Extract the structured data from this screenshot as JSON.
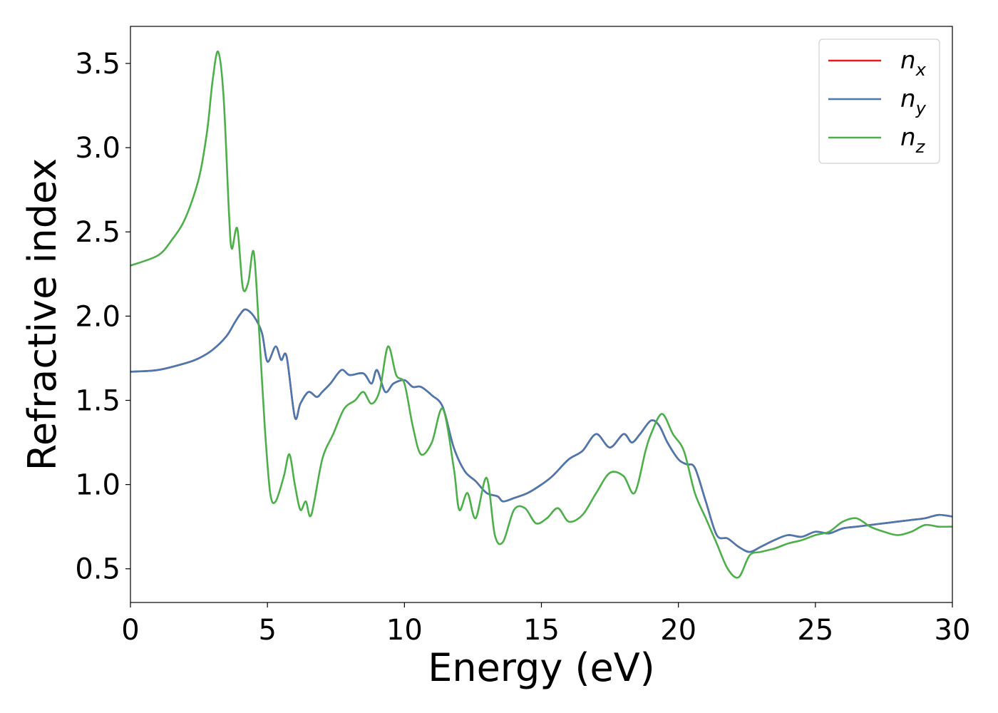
{
  "chart_data": {
    "type": "line",
    "xlabel": "Energy (eV)",
    "ylabel": "Refractive index",
    "xlim": [
      0,
      30
    ],
    "ylim": [
      0.3,
      3.72
    ],
    "xticks": [
      0,
      5,
      10,
      15,
      20,
      25,
      30
    ],
    "xtick_labels": [
      "0",
      "5",
      "10",
      "15",
      "20",
      "25",
      "30"
    ],
    "yticks": [
      0.5,
      1.0,
      1.5,
      2.0,
      2.5,
      3.0,
      3.5
    ],
    "ytick_labels": [
      "0.5",
      "1.0",
      "1.5",
      "2.0",
      "2.5",
      "3.0",
      "3.5"
    ],
    "grid": false,
    "legend_position": "top-right",
    "series": [
      {
        "name": "n_x",
        "label_base": "n",
        "label_sub": "x",
        "color": "#e41a1c",
        "x": [
          0,
          1,
          2,
          2.5,
          3,
          3.5,
          3.8,
          4.0,
          4.2,
          4.5,
          4.8,
          5.0,
          5.3,
          5.5,
          5.7,
          6.0,
          6.2,
          6.5,
          6.8,
          7.0,
          7.3,
          7.7,
          8.0,
          8.5,
          8.8,
          9.0,
          9.3,
          9.6,
          10.0,
          10.3,
          10.6,
          11.0,
          11.4,
          11.8,
          12.2,
          12.6,
          13.0,
          13.4,
          13.6,
          14.0,
          14.5,
          15.0,
          15.4,
          16.0,
          16.5,
          17.0,
          17.5,
          18.0,
          18.3,
          18.6,
          19.0,
          19.3,
          19.6,
          20.0,
          20.3,
          20.6,
          21.0,
          21.4,
          21.8,
          22.2,
          22.6,
          23.0,
          23.5,
          24.0,
          24.5,
          25.0,
          25.5,
          26.0,
          26.5,
          27.0,
          27.5,
          28.0,
          28.5,
          29.0,
          29.5,
          30.0
        ],
        "y": [
          1.67,
          1.68,
          1.72,
          1.75,
          1.8,
          1.88,
          1.96,
          2.01,
          2.04,
          2.0,
          1.9,
          1.73,
          1.82,
          1.74,
          1.76,
          1.4,
          1.48,
          1.55,
          1.52,
          1.55,
          1.6,
          1.68,
          1.65,
          1.66,
          1.6,
          1.68,
          1.55,
          1.6,
          1.62,
          1.58,
          1.58,
          1.53,
          1.46,
          1.22,
          1.08,
          1.02,
          0.95,
          0.93,
          0.9,
          0.92,
          0.95,
          1.0,
          1.05,
          1.15,
          1.2,
          1.3,
          1.22,
          1.3,
          1.25,
          1.3,
          1.38,
          1.35,
          1.25,
          1.15,
          1.12,
          1.1,
          0.9,
          0.7,
          0.68,
          0.63,
          0.6,
          0.63,
          0.67,
          0.7,
          0.69,
          0.72,
          0.71,
          0.74,
          0.75,
          0.76,
          0.77,
          0.78,
          0.79,
          0.8,
          0.82,
          0.81
        ]
      },
      {
        "name": "n_y",
        "label_base": "n",
        "label_sub": "y",
        "color": "#4a78b0",
        "x": [
          0,
          1,
          2,
          2.5,
          3,
          3.5,
          3.8,
          4.0,
          4.2,
          4.5,
          4.8,
          5.0,
          5.3,
          5.5,
          5.7,
          6.0,
          6.2,
          6.5,
          6.8,
          7.0,
          7.3,
          7.7,
          8.0,
          8.5,
          8.8,
          9.0,
          9.3,
          9.6,
          10.0,
          10.3,
          10.6,
          11.0,
          11.4,
          11.8,
          12.2,
          12.6,
          13.0,
          13.4,
          13.6,
          14.0,
          14.5,
          15.0,
          15.4,
          16.0,
          16.5,
          17.0,
          17.5,
          18.0,
          18.3,
          18.6,
          19.0,
          19.3,
          19.6,
          20.0,
          20.3,
          20.6,
          21.0,
          21.4,
          21.8,
          22.2,
          22.6,
          23.0,
          23.5,
          24.0,
          24.5,
          25.0,
          25.5,
          26.0,
          26.5,
          27.0,
          27.5,
          28.0,
          28.5,
          29.0,
          29.5,
          30.0
        ],
        "y": [
          1.67,
          1.68,
          1.72,
          1.75,
          1.8,
          1.88,
          1.96,
          2.01,
          2.04,
          2.0,
          1.9,
          1.73,
          1.82,
          1.74,
          1.76,
          1.4,
          1.48,
          1.55,
          1.52,
          1.55,
          1.6,
          1.68,
          1.65,
          1.66,
          1.6,
          1.68,
          1.55,
          1.6,
          1.62,
          1.58,
          1.58,
          1.53,
          1.46,
          1.22,
          1.08,
          1.02,
          0.95,
          0.93,
          0.9,
          0.92,
          0.95,
          1.0,
          1.05,
          1.15,
          1.2,
          1.3,
          1.22,
          1.3,
          1.25,
          1.3,
          1.38,
          1.35,
          1.25,
          1.15,
          1.12,
          1.1,
          0.9,
          0.7,
          0.68,
          0.63,
          0.6,
          0.63,
          0.67,
          0.7,
          0.69,
          0.72,
          0.71,
          0.74,
          0.75,
          0.76,
          0.77,
          0.78,
          0.79,
          0.8,
          0.82,
          0.81
        ]
      },
      {
        "name": "n_z",
        "label_base": "n",
        "label_sub": "z",
        "color": "#4daf4a",
        "x": [
          0,
          1,
          1.5,
          2.0,
          2.5,
          2.8,
          3.0,
          3.2,
          3.4,
          3.6,
          3.7,
          3.9,
          4.1,
          4.3,
          4.5,
          4.7,
          4.9,
          5.1,
          5.3,
          5.6,
          5.8,
          6.0,
          6.2,
          6.4,
          6.6,
          7.0,
          7.4,
          7.8,
          8.2,
          8.5,
          8.8,
          9.1,
          9.4,
          9.7,
          10.0,
          10.3,
          10.6,
          11.0,
          11.4,
          11.8,
          12.0,
          12.3,
          12.6,
          13.0,
          13.3,
          13.6,
          14.0,
          14.4,
          14.8,
          15.2,
          15.6,
          16.0,
          16.5,
          17.0,
          17.5,
          18.0,
          18.4,
          18.8,
          19.0,
          19.4,
          19.8,
          20.2,
          20.6,
          21.0,
          21.4,
          21.8,
          22.2,
          22.6,
          23.0,
          23.5,
          24.0,
          24.5,
          25.0,
          25.5,
          26.0,
          26.5,
          27.0,
          27.5,
          28.0,
          28.5,
          29.0,
          29.5,
          30.0
        ],
        "y": [
          2.3,
          2.36,
          2.45,
          2.58,
          2.82,
          3.1,
          3.4,
          3.57,
          3.3,
          2.6,
          2.4,
          2.52,
          2.17,
          2.2,
          2.38,
          1.9,
          1.35,
          0.95,
          0.9,
          1.05,
          1.18,
          1.0,
          0.85,
          0.9,
          0.82,
          1.15,
          1.3,
          1.45,
          1.5,
          1.55,
          1.48,
          1.56,
          1.82,
          1.65,
          1.6,
          1.35,
          1.18,
          1.25,
          1.45,
          1.1,
          0.85,
          0.95,
          0.8,
          1.04,
          0.7,
          0.66,
          0.85,
          0.86,
          0.77,
          0.8,
          0.86,
          0.78,
          0.82,
          0.95,
          1.07,
          1.05,
          0.95,
          1.2,
          1.3,
          1.42,
          1.3,
          1.2,
          0.95,
          0.8,
          0.65,
          0.5,
          0.45,
          0.58,
          0.6,
          0.62,
          0.65,
          0.67,
          0.7,
          0.72,
          0.78,
          0.8,
          0.75,
          0.72,
          0.7,
          0.72,
          0.76,
          0.75,
          0.75
        ]
      }
    ]
  }
}
